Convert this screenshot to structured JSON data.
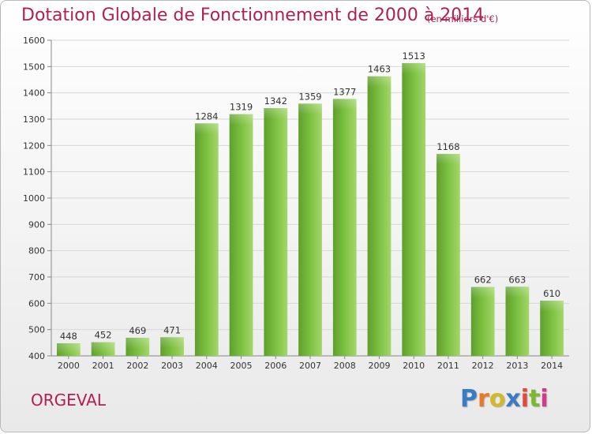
{
  "header": {
    "title": "Dotation Globale de Fonctionnement de 2000 à 2014",
    "subtitle": "(en milliers d'€)"
  },
  "footer": {
    "commune": "ORGEVAL",
    "brand": "Proxiti",
    "brand_colors": [
      "#3a7cc3",
      "#e8792a",
      "#d4b82c",
      "#3a7cc3",
      "#e04a3a",
      "#7ab830",
      "#d43a8a"
    ]
  },
  "colors": {
    "bar": "#7cc142",
    "bar_light": "#a4d66a",
    "bar_dark": "#5f9f2c",
    "grid": "#d8d8d8",
    "axis_text": "#333333",
    "accent": "#b02050"
  },
  "chart_data": {
    "type": "bar",
    "title": "Dotation Globale de Fonctionnement de 2000 à 2014",
    "subtitle": "(en milliers d'€)",
    "xlabel": "",
    "ylabel": "",
    "categories": [
      "2000",
      "2001",
      "2002",
      "2003",
      "2004",
      "2005",
      "2006",
      "2007",
      "2008",
      "2009",
      "2010",
      "2011",
      "2012",
      "2013",
      "2014"
    ],
    "values": [
      448,
      452,
      469,
      471,
      1284,
      1319,
      1342,
      1359,
      1377,
      1463,
      1513,
      1168,
      662,
      663,
      610
    ],
    "ylim": [
      400,
      1600
    ],
    "yticks": [
      400,
      500,
      600,
      700,
      800,
      900,
      1000,
      1100,
      1200,
      1300,
      1400,
      1500,
      1600
    ],
    "grid": true,
    "data_labels": true
  }
}
